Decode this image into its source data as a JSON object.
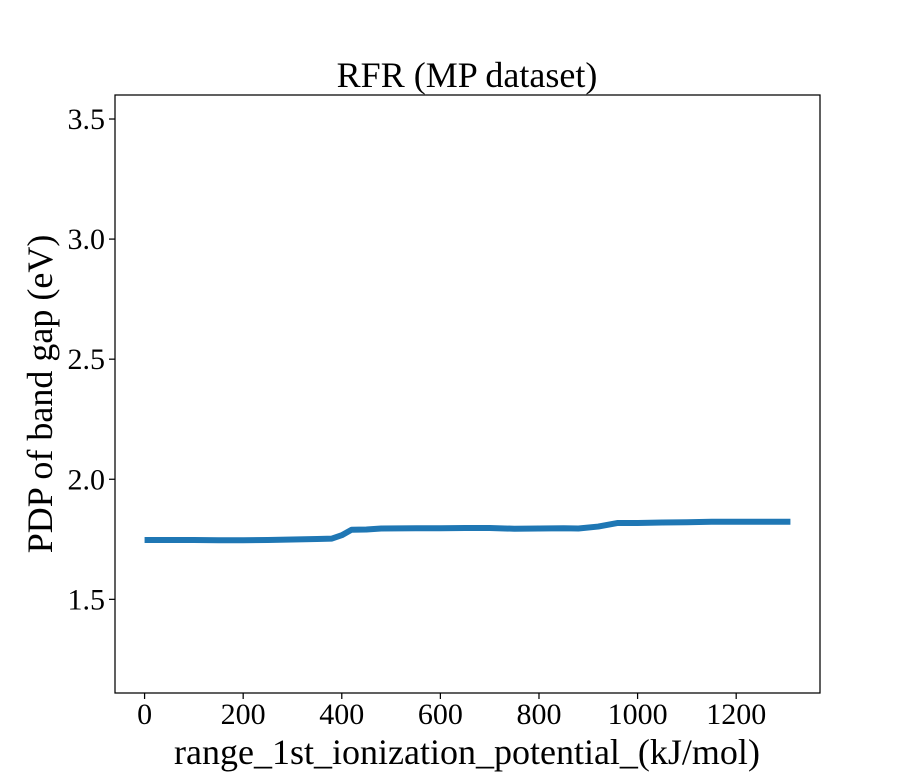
{
  "chart_data": {
    "type": "line",
    "title": "RFR (MP dataset)",
    "xlabel": "range_1st_ionization_potential_(kJ/mol)",
    "ylabel": "PDP of band gap (eV)",
    "xlim": [
      -60,
      1370
    ],
    "ylim": [
      1.11,
      3.6
    ],
    "xticks": [
      0,
      200,
      400,
      600,
      800,
      1000,
      1200
    ],
    "yticks": [
      1.5,
      2.0,
      2.5,
      3.0,
      3.5
    ],
    "xtick_labels": [
      "0",
      "200",
      "400",
      "600",
      "800",
      "1000",
      "1200"
    ],
    "ytick_labels": [
      "1.5",
      "2.0",
      "2.5",
      "3.0",
      "3.5"
    ],
    "grid": false,
    "series": [
      {
        "color": "#1f77b4",
        "x": [
          0,
          50,
          100,
          150,
          200,
          250,
          300,
          350,
          380,
          400,
          420,
          450,
          480,
          550,
          600,
          650,
          700,
          750,
          800,
          850,
          880,
          920,
          960,
          1000,
          1050,
          1100,
          1150,
          1200,
          1250,
          1310
        ],
        "y": [
          1.747,
          1.747,
          1.747,
          1.746,
          1.746,
          1.747,
          1.749,
          1.751,
          1.753,
          1.767,
          1.79,
          1.791,
          1.795,
          1.796,
          1.796,
          1.797,
          1.797,
          1.794,
          1.795,
          1.796,
          1.795,
          1.803,
          1.818,
          1.818,
          1.82,
          1.821,
          1.823,
          1.823,
          1.823,
          1.823
        ]
      }
    ]
  }
}
